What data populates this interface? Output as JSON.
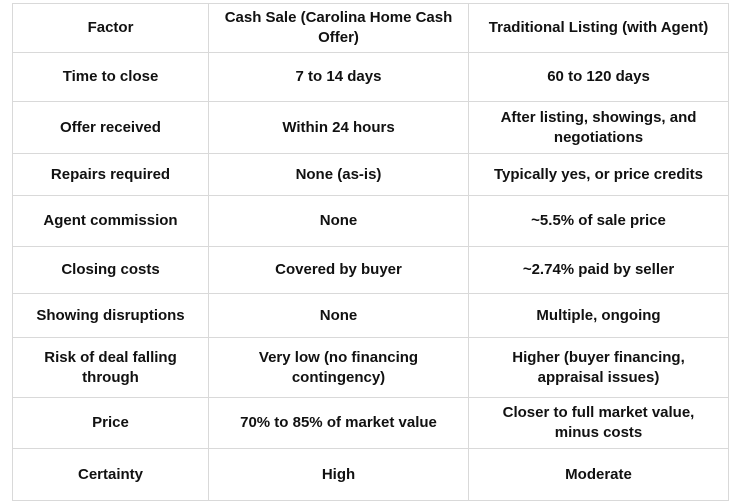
{
  "colors": {
    "background": "#ffffff",
    "border": "#d9d9d9",
    "text": "#111111"
  },
  "table": {
    "headers": [
      "Factor",
      "Cash Sale (Carolina Home Cash Offer)",
      "Traditional Listing (with Agent)"
    ],
    "rows": [
      [
        "Time to close",
        "7 to 14 days",
        "60 to 120 days"
      ],
      [
        "Offer received",
        "Within 24 hours",
        "After listing, showings, and negotiations"
      ],
      [
        "Repairs required",
        "None (as-is)",
        "Typically yes, or price credits"
      ],
      [
        "Agent commission",
        "None",
        "~5.5% of sale price"
      ],
      [
        "Closing costs",
        "Covered by buyer",
        "~2.74% paid by seller"
      ],
      [
        "Showing disruptions",
        "None",
        "Multiple, ongoing"
      ],
      [
        "Risk of deal falling through",
        "Very low (no financing contingency)",
        "Higher (buyer financing, appraisal issues)"
      ],
      [
        "Price",
        "70% to 85% of market value",
        "Closer to full market value, minus costs"
      ],
      [
        "Certainty",
        "High",
        "Moderate"
      ]
    ]
  }
}
